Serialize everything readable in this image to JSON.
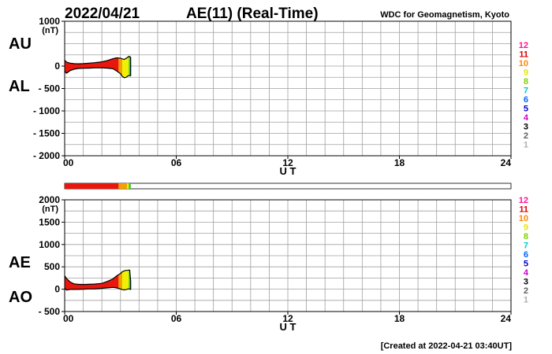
{
  "header": {
    "date": "2022/04/21",
    "title": "AE(11) (Real-Time)",
    "source": "WDC for Geomagnetism, Kyoto"
  },
  "footer": {
    "created": "[Created at 2022-04-21 03:40UT]"
  },
  "colors": {
    "plot_bg": "#ffffff",
    "grid": "#a0a0a0",
    "axis": "#000000",
    "fill_red": "#e8160c",
    "fill_orange": "#f4a000",
    "fill_yellow": "#f0f000",
    "fill_green": "#28c828",
    "fill_teal": "#00b4b4",
    "legend": [
      "#ff1493",
      "#dd0000",
      "#ff8800",
      "#e6e600",
      "#7ed000",
      "#00c8c8",
      "#0066ff",
      "#0000cc",
      "#cc00cc",
      "#000000",
      "#606060",
      "#b0b0b0"
    ]
  },
  "chart_data": [
    {
      "type": "area",
      "panel": "AU/AL",
      "left_labels": [
        "AU",
        "AL"
      ],
      "ylabel": "(nT)",
      "xlabel": "U T",
      "ylim": [
        -2000,
        1000
      ],
      "yticks": [
        1000,
        0,
        -500,
        -1000,
        -1500,
        -2000
      ],
      "ytick_labels": [
        "1000",
        "0",
        "- 500",
        "- 1000",
        "- 1500",
        "- 2000"
      ],
      "xlim": [
        0,
        24
      ],
      "xticks": [
        0,
        6,
        12,
        18,
        24
      ],
      "xtick_labels": [
        "00",
        "06",
        "12",
        "18",
        "24"
      ],
      "grid": true,
      "series": [
        {
          "x": [
            0,
            0.1,
            0.3,
            0.5,
            0.7,
            1.0,
            1.3,
            1.6,
            2.0,
            2.3,
            2.6,
            2.8,
            3.0,
            3.1,
            3.2,
            3.3,
            3.4,
            3.45,
            3.5,
            3.55
          ],
          "y": [
            130,
            90,
            65,
            55,
            50,
            55,
            65,
            75,
            95,
            125,
            165,
            185,
            175,
            160,
            150,
            170,
            200,
            215,
            210,
            200
          ]
        },
        {
          "x": [
            0,
            0.1,
            0.3,
            0.5,
            0.7,
            1.0,
            1.3,
            1.6,
            2.0,
            2.3,
            2.6,
            2.8,
            3.0,
            3.1,
            3.2,
            3.3,
            3.4,
            3.45,
            3.5,
            3.55
          ],
          "y": [
            -120,
            -160,
            -100,
            -70,
            -55,
            -50,
            -45,
            -40,
            -40,
            -45,
            -60,
            -110,
            -170,
            -230,
            -260,
            -250,
            -220,
            -210,
            -215,
            -220
          ]
        }
      ]
    },
    {
      "type": "area",
      "panel": "AE/AO",
      "left_labels": [
        "AE",
        "AO"
      ],
      "ylabel": "(nT)",
      "xlabel": "U T",
      "ylim": [
        -500,
        2000
      ],
      "yticks": [
        2000,
        1500,
        1000,
        500,
        0,
        -500
      ],
      "ytick_labels": [
        "2000",
        "1500",
        "1000",
        "500",
        "0",
        "- 500"
      ],
      "xlim": [
        0,
        24
      ],
      "xticks": [
        0,
        6,
        12,
        18,
        24
      ],
      "xtick_labels": [
        "00",
        "06",
        "12",
        "18",
        "24"
      ],
      "grid": true,
      "series": [
        {
          "x": [
            0,
            0.1,
            0.3,
            0.5,
            0.7,
            1.0,
            1.3,
            1.6,
            2.0,
            2.3,
            2.6,
            2.8,
            3.0,
            3.1,
            3.2,
            3.3,
            3.4,
            3.45,
            3.5,
            3.55
          ],
          "y": [
            300,
            240,
            160,
            120,
            110,
            105,
            110,
            115,
            130,
            175,
            230,
            300,
            350,
            390,
            410,
            420,
            420,
            430,
            425,
            180
          ]
        },
        {
          "x": [
            0,
            0.1,
            0.3,
            0.5,
            0.7,
            1.0,
            1.3,
            1.6,
            2.0,
            2.3,
            2.6,
            2.8,
            3.0,
            3.1,
            3.2,
            3.3,
            3.4,
            3.45,
            3.5,
            3.55
          ],
          "y": [
            20,
            -20,
            -5,
            -5,
            -5,
            0,
            5,
            5,
            20,
            30,
            40,
            30,
            5,
            -10,
            -15,
            -10,
            5,
            5,
            0,
            -10
          ]
        }
      ]
    }
  ],
  "kp_bar": {
    "segments": [
      {
        "end_hour": 2.9,
        "color": "#e8160c"
      },
      {
        "end_hour": 3.35,
        "color": "#f4a000"
      },
      {
        "end_hour": 3.45,
        "color": "#f0f000"
      },
      {
        "end_hour": 3.55,
        "color": "#28c828"
      }
    ]
  },
  "fill_bands": [
    {
      "end_hour": 2.9,
      "color": "#e8160c"
    },
    {
      "end_hour": 3.1,
      "color": "#f4a000"
    },
    {
      "end_hour": 3.45,
      "color": "#f0f000"
    },
    {
      "end_hour": 3.5,
      "color": "#28c828"
    },
    {
      "end_hour": 3.55,
      "color": "#00b4b4"
    }
  ],
  "legend": {
    "labels": [
      "12",
      "11",
      "10",
      "9",
      "8",
      "7",
      "6",
      "5",
      "4",
      "3",
      "2",
      "1"
    ]
  }
}
